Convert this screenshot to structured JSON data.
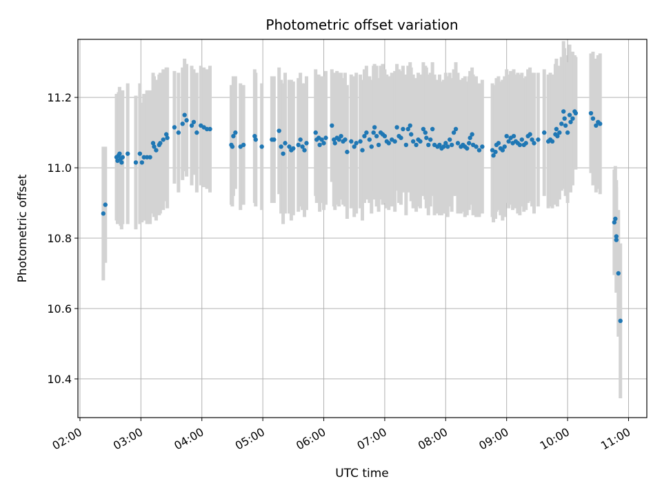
{
  "chart_data": {
    "type": "scatter",
    "title": "Photometric offset variation",
    "xlabel": "UTC time",
    "ylabel": "Photometric offset",
    "x_unit": "hours UTC",
    "xlim": [
      "01:58",
      "11:18"
    ],
    "ylim": [
      10.29,
      11.365
    ],
    "grid": true,
    "x_ticks": [
      "02:00",
      "03:00",
      "04:00",
      "05:00",
      "06:00",
      "07:00",
      "08:00",
      "09:00",
      "10:00",
      "11:00"
    ],
    "y_ticks": [
      "10.4",
      "10.6",
      "10.8",
      "11.0",
      "11.2"
    ],
    "colors": {
      "points": "#1f77b4",
      "errorbars": "#d3d3d3",
      "grid": "#b0b0b0"
    },
    "series": [
      {
        "points": [
          [
            "02:23",
            10.87,
            0.19
          ],
          [
            "02:25",
            10.895,
            0.165
          ],
          [
            "02:36",
            11.03,
            0.18
          ],
          [
            "02:37",
            11.02,
            0.18
          ],
          [
            "02:38",
            11.035,
            0.18
          ],
          [
            "02:39",
            11.04,
            0.19
          ],
          [
            "02:40",
            11.025,
            0.19
          ],
          [
            "02:41",
            11.015,
            0.19
          ],
          [
            "02:42",
            11.03,
            0.19
          ],
          [
            "02:47",
            11.04,
            0.2
          ],
          [
            "02:55",
            11.015,
            0.19
          ],
          [
            "02:59",
            11.04,
            0.2
          ],
          [
            "03:01",
            11.015,
            0.17
          ],
          [
            "03:03",
            11.03,
            0.18
          ],
          [
            "03:06",
            11.03,
            0.19
          ],
          [
            "03:09",
            11.03,
            0.19
          ],
          [
            "03:12",
            11.07,
            0.2
          ],
          [
            "03:13",
            11.06,
            0.2
          ],
          [
            "03:15",
            11.05,
            0.2
          ],
          [
            "03:18",
            11.065,
            0.2
          ],
          [
            "03:19",
            11.07,
            0.2
          ],
          [
            "03:22",
            11.08,
            0.2
          ],
          [
            "03:25",
            11.095,
            0.19
          ],
          [
            "03:26",
            11.085,
            0.2
          ],
          [
            "03:33",
            11.115,
            0.16
          ],
          [
            "03:37",
            11.1,
            0.17
          ],
          [
            "03:41",
            11.125,
            0.16
          ],
          [
            "03:43",
            11.15,
            0.16
          ],
          [
            "03:45",
            11.135,
            0.16
          ],
          [
            "03:50",
            11.12,
            0.17
          ],
          [
            "03:52",
            11.13,
            0.15
          ],
          [
            "03:55",
            11.1,
            0.17
          ],
          [
            "03:59",
            11.12,
            0.17
          ],
          [
            "04:02",
            11.115,
            0.17
          ],
          [
            "04:05",
            11.11,
            0.17
          ],
          [
            "04:08",
            11.11,
            0.18
          ],
          [
            "04:29",
            11.065,
            0.17
          ],
          [
            "04:30",
            11.06,
            0.17
          ],
          [
            "04:31",
            11.09,
            0.17
          ],
          [
            "04:33",
            11.1,
            0.16
          ],
          [
            "04:38",
            11.06,
            0.18
          ],
          [
            "04:41",
            11.065,
            0.17
          ],
          [
            "04:52",
            11.09,
            0.19
          ],
          [
            "04:53",
            11.08,
            0.19
          ],
          [
            "04:59",
            11.06,
            0.18
          ],
          [
            "05:09",
            11.08,
            0.18
          ],
          [
            "05:11",
            11.08,
            0.18
          ],
          [
            "05:16",
            11.105,
            0.18
          ],
          [
            "05:18",
            11.06,
            0.19
          ],
          [
            "05:20",
            11.04,
            0.2
          ],
          [
            "05:22",
            11.07,
            0.2
          ],
          [
            "05:26",
            11.06,
            0.19
          ],
          [
            "05:28",
            11.05,
            0.2
          ],
          [
            "05:30",
            11.055,
            0.19
          ],
          [
            "05:35",
            11.065,
            0.19
          ],
          [
            "05:37",
            11.08,
            0.19
          ],
          [
            "05:39",
            11.06,
            0.18
          ],
          [
            "05:41",
            11.05,
            0.19
          ],
          [
            "05:43",
            11.07,
            0.19
          ],
          [
            "05:52",
            11.1,
            0.18
          ],
          [
            "05:53",
            11.08,
            0.18
          ],
          [
            "05:55",
            11.085,
            0.18
          ],
          [
            "05:56",
            11.065,
            0.19
          ],
          [
            "05:58",
            11.08,
            0.18
          ],
          [
            "06:00",
            11.07,
            0.19
          ],
          [
            "06:02",
            11.085,
            0.19
          ],
          [
            "06:08",
            11.12,
            0.16
          ],
          [
            "06:10",
            11.08,
            0.19
          ],
          [
            "06:11",
            11.07,
            0.19
          ],
          [
            "06:13",
            11.085,
            0.19
          ],
          [
            "06:15",
            11.08,
            0.19
          ],
          [
            "06:17",
            11.09,
            0.18
          ],
          [
            "06:19",
            11.075,
            0.18
          ],
          [
            "06:21",
            11.08,
            0.19
          ],
          [
            "06:23",
            11.045,
            0.19
          ],
          [
            "06:27",
            11.075,
            0.19
          ],
          [
            "06:30",
            11.06,
            0.2
          ],
          [
            "06:32",
            11.07,
            0.2
          ],
          [
            "06:36",
            11.075,
            0.19
          ],
          [
            "06:38",
            11.05,
            0.2
          ],
          [
            "06:40",
            11.09,
            0.19
          ],
          [
            "06:42",
            11.1,
            0.19
          ],
          [
            "06:45",
            11.08,
            0.18
          ],
          [
            "06:47",
            11.06,
            0.19
          ],
          [
            "06:49",
            11.1,
            0.19
          ],
          [
            "06:50",
            11.115,
            0.18
          ],
          [
            "06:52",
            11.09,
            0.2
          ],
          [
            "06:54",
            11.065,
            0.19
          ],
          [
            "06:56",
            11.1,
            0.19
          ],
          [
            "06:58",
            11.095,
            0.2
          ],
          [
            "07:00",
            11.09,
            0.19
          ],
          [
            "07:02",
            11.075,
            0.19
          ],
          [
            "07:04",
            11.07,
            0.19
          ],
          [
            "07:07",
            11.08,
            0.19
          ],
          [
            "07:10",
            11.075,
            0.2
          ],
          [
            "07:12",
            11.115,
            0.18
          ],
          [
            "07:14",
            11.09,
            0.19
          ],
          [
            "07:16",
            11.085,
            0.19
          ],
          [
            "07:18",
            11.11,
            0.18
          ],
          [
            "07:21",
            11.065,
            0.2
          ],
          [
            "07:23",
            11.11,
            0.18
          ],
          [
            "07:25",
            11.12,
            0.18
          ],
          [
            "07:26",
            11.095,
            0.19
          ],
          [
            "07:28",
            11.075,
            0.19
          ],
          [
            "07:31",
            11.065,
            0.19
          ],
          [
            "07:33",
            11.08,
            0.19
          ],
          [
            "07:35",
            11.075,
            0.19
          ],
          [
            "07:38",
            11.11,
            0.19
          ],
          [
            "07:40",
            11.1,
            0.19
          ],
          [
            "07:41",
            11.085,
            0.2
          ],
          [
            "07:43",
            11.065,
            0.2
          ],
          [
            "07:45",
            11.08,
            0.19
          ],
          [
            "07:47",
            11.11,
            0.19
          ],
          [
            "07:49",
            11.065,
            0.2
          ],
          [
            "07:52",
            11.06,
            0.19
          ],
          [
            "07:54",
            11.065,
            0.2
          ],
          [
            "07:56",
            11.055,
            0.19
          ],
          [
            "07:58",
            11.06,
            0.19
          ],
          [
            "08:00",
            11.07,
            0.2
          ],
          [
            "08:02",
            11.06,
            0.2
          ],
          [
            "08:04",
            11.08,
            0.19
          ],
          [
            "08:06",
            11.065,
            0.19
          ],
          [
            "08:08",
            11.1,
            0.18
          ],
          [
            "08:10",
            11.11,
            0.19
          ],
          [
            "08:12",
            11.07,
            0.2
          ],
          [
            "08:15",
            11.06,
            0.19
          ],
          [
            "08:17",
            11.065,
            0.19
          ],
          [
            "08:19",
            11.06,
            0.2
          ],
          [
            "08:21",
            11.055,
            0.19
          ],
          [
            "08:23",
            11.07,
            0.19
          ],
          [
            "08:24",
            11.085,
            0.19
          ],
          [
            "08:26",
            11.095,
            0.19
          ],
          [
            "08:27",
            11.065,
            0.2
          ],
          [
            "08:30",
            11.06,
            0.2
          ],
          [
            "08:33",
            11.05,
            0.19
          ],
          [
            "08:36",
            11.06,
            0.19
          ],
          [
            "08:46",
            11.05,
            0.19
          ],
          [
            "08:47",
            11.035,
            0.19
          ],
          [
            "08:49",
            11.045,
            0.19
          ],
          [
            "08:50",
            11.065,
            0.19
          ],
          [
            "08:52",
            11.07,
            0.19
          ],
          [
            "08:54",
            11.055,
            0.19
          ],
          [
            "08:56",
            11.05,
            0.2
          ],
          [
            "08:58",
            11.06,
            0.2
          ],
          [
            "09:00",
            11.09,
            0.19
          ],
          [
            "09:02",
            11.075,
            0.19
          ],
          [
            "09:04",
            11.085,
            0.19
          ],
          [
            "09:06",
            11.07,
            0.19
          ],
          [
            "09:07",
            11.09,
            0.19
          ],
          [
            "09:09",
            11.075,
            0.19
          ],
          [
            "09:11",
            11.07,
            0.2
          ],
          [
            "09:13",
            11.065,
            0.2
          ],
          [
            "09:15",
            11.08,
            0.19
          ],
          [
            "09:17",
            11.065,
            0.19
          ],
          [
            "09:19",
            11.07,
            0.19
          ],
          [
            "09:21",
            11.09,
            0.19
          ],
          [
            "09:23",
            11.095,
            0.19
          ],
          [
            "09:25",
            11.08,
            0.19
          ],
          [
            "09:27",
            11.07,
            0.2
          ],
          [
            "09:31",
            11.08,
            0.19
          ],
          [
            "09:37",
            11.1,
            0.18
          ],
          [
            "09:41",
            11.075,
            0.19
          ],
          [
            "09:43",
            11.08,
            0.19
          ],
          [
            "09:45",
            11.075,
            0.19
          ],
          [
            "09:48",
            11.095,
            0.2
          ],
          [
            "09:49",
            11.11,
            0.2
          ],
          [
            "09:50",
            11.09,
            0.2
          ],
          [
            "09:52",
            11.1,
            0.19
          ],
          [
            "09:54",
            11.125,
            0.19
          ],
          [
            "09:56",
            11.16,
            0.2
          ],
          [
            "09:57",
            11.14,
            0.2
          ],
          [
            "09:58",
            11.12,
            0.2
          ],
          [
            "10:00",
            11.1,
            0.2
          ],
          [
            "10:02",
            11.15,
            0.2
          ],
          [
            "10:03",
            11.13,
            0.2
          ],
          [
            "10:05",
            11.14,
            0.19
          ],
          [
            "10:07",
            11.16,
            0.16
          ],
          [
            "10:08",
            11.155,
            0.16
          ],
          [
            "10:23",
            11.155,
            0.17
          ],
          [
            "10:25",
            11.14,
            0.19
          ],
          [
            "10:28",
            11.12,
            0.19
          ],
          [
            "10:30",
            11.13,
            0.19
          ],
          [
            "10:32",
            11.125,
            0.2
          ],
          [
            "10:46",
            10.845,
            0.15
          ],
          [
            "10:47",
            10.855,
            0.15
          ],
          [
            "10:48",
            10.805,
            0.16
          ],
          [
            "10:48",
            10.795,
            0.15
          ],
          [
            "10:50",
            10.7,
            0.18
          ],
          [
            "10:52",
            10.565,
            0.22
          ]
        ]
      }
    ]
  }
}
